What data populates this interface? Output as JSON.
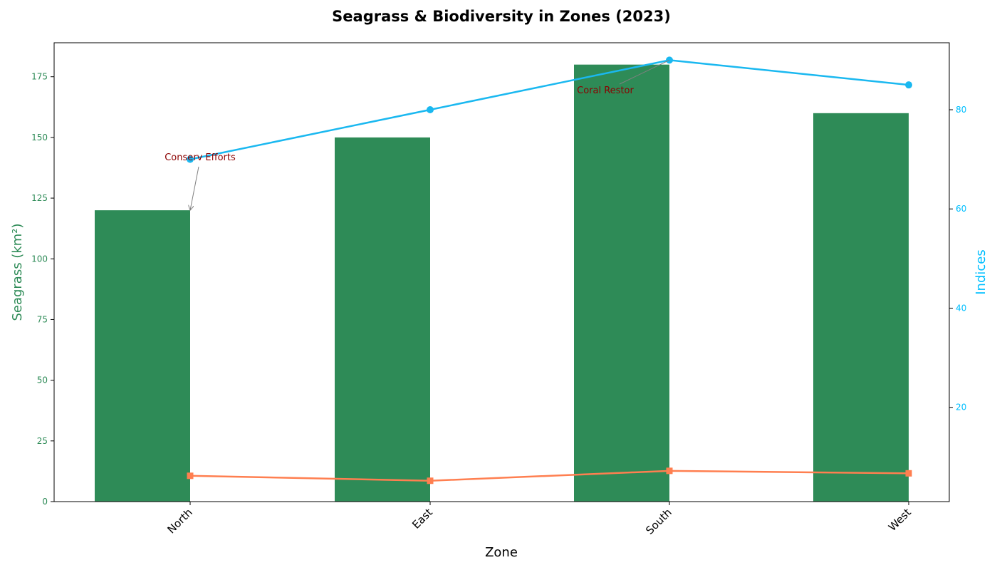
{
  "chart_data": {
    "type": "bar+line",
    "title": "Seagrass & Biodiversity in Zones (2023)",
    "xlabel": "Zone",
    "ylabel_left": "Seagrass (km²)",
    "ylabel_right": "Indices",
    "categories": [
      "North",
      "East",
      "South",
      "West"
    ],
    "left_axis": {
      "ylim": [
        0,
        189
      ],
      "ticks": [
        0,
        25,
        50,
        75,
        100,
        125,
        150,
        175
      ],
      "color": "#2e8b57"
    },
    "right_axis": {
      "ylim": [
        1.0,
        93.5
      ],
      "ticks": [
        20,
        40,
        60,
        80
      ],
      "color": "#00bfff"
    },
    "bars": {
      "values": [
        120,
        150,
        180,
        160
      ],
      "color": "#2e8b57"
    },
    "lines": [
      {
        "values": [
          70,
          80,
          90,
          85
        ],
        "color": "#1ab8f0",
        "marker": "circle"
      },
      {
        "values": [
          6.2,
          5.2,
          7.2,
          6.7
        ],
        "color": "#ff7f50",
        "marker": "square"
      }
    ],
    "annotations": [
      {
        "text": "Conserv Efforts",
        "category": "North",
        "target_value": 120,
        "axis": "left",
        "color": "#8b0000"
      },
      {
        "text": "Coral Restor",
        "category": "South",
        "target_value": 90,
        "axis": "right",
        "color": "#8b0000"
      }
    ],
    "grid": false,
    "legend": "none"
  }
}
